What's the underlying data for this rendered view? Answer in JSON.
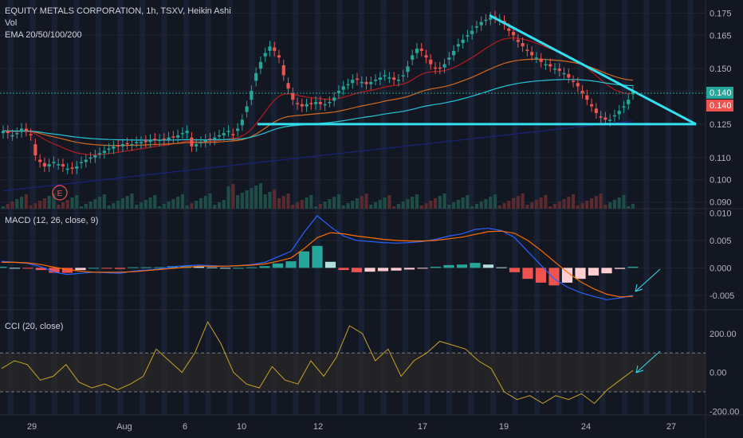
{
  "header": {
    "symbol_line": "EQUITY METALS CORPORATION, 1h, TSXV, Heikin Ashi",
    "vol_label": "Vol",
    "ema_label": "EMA 20/50/100/200",
    "event_marker": "E"
  },
  "colors": {
    "background": "#131722",
    "up": "#26a69a",
    "down": "#ef5350",
    "trendline": "#32e0f0",
    "ema20": "#b71c1c",
    "ema50": "#d2691e",
    "ema100": "#26c6da",
    "ema200": "#1a237e",
    "macd_line": "#2962ff",
    "signal_line": "#ff6d00",
    "cci_line": "#c9a227"
  },
  "chart_data": [
    {
      "type": "candlestick",
      "panel": "price",
      "title": "EQUITY METALS CORPORATION, 1h, TSXV, Heikin Ashi",
      "x_ticks": [
        "29",
        "Aug",
        "6",
        "10",
        "12",
        "17",
        "19",
        "24",
        "27"
      ],
      "y_ticks": [
        0.175,
        0.165,
        0.15,
        0.14,
        0.125,
        0.11,
        0.1,
        0.09
      ],
      "y_tick_labels": [
        "0.175",
        "0.165",
        "0.150",
        "0.140",
        "0.125",
        "0.110",
        "0.100",
        "0.090"
      ],
      "ylim": [
        0.087,
        0.178
      ],
      "price_labels": [
        "0.140",
        "0.140"
      ],
      "candles_close": [
        0.122,
        0.121,
        0.12,
        0.121,
        0.123,
        0.122,
        0.12,
        0.111,
        0.108,
        0.106,
        0.107,
        0.108,
        0.107,
        0.106,
        0.105,
        0.105,
        0.106,
        0.108,
        0.109,
        0.11,
        0.111,
        0.112,
        0.113,
        0.114,
        0.115,
        0.115,
        0.116,
        0.116,
        0.116,
        0.117,
        0.117,
        0.117,
        0.118,
        0.118,
        0.118,
        0.118,
        0.119,
        0.119,
        0.12,
        0.121,
        0.122,
        0.115,
        0.116,
        0.117,
        0.118,
        0.118,
        0.119,
        0.12,
        0.121,
        0.122,
        0.12,
        0.123,
        0.127,
        0.133,
        0.14,
        0.148,
        0.153,
        0.157,
        0.16,
        0.158,
        0.155,
        0.147,
        0.141,
        0.136,
        0.134,
        0.133,
        0.134,
        0.134,
        0.135,
        0.134,
        0.134,
        0.135,
        0.137,
        0.14,
        0.142,
        0.143,
        0.145,
        0.145,
        0.144,
        0.143,
        0.144,
        0.145,
        0.146,
        0.147,
        0.146,
        0.145,
        0.145,
        0.147,
        0.151,
        0.156,
        0.159,
        0.158,
        0.155,
        0.152,
        0.15,
        0.15,
        0.152,
        0.155,
        0.158,
        0.161,
        0.163,
        0.165,
        0.167,
        0.169,
        0.171,
        0.172,
        0.173,
        0.173,
        0.172,
        0.17,
        0.167,
        0.165,
        0.162,
        0.16,
        0.158,
        0.156,
        0.155,
        0.153,
        0.152,
        0.151,
        0.15,
        0.149,
        0.148,
        0.146,
        0.144,
        0.142,
        0.139,
        0.136,
        0.133,
        0.13,
        0.128,
        0.127,
        0.127,
        0.129,
        0.131,
        0.133,
        0.136,
        0.14
      ],
      "ema_labels": [
        "EMA 20",
        "EMA 50",
        "EMA 100",
        "EMA 200"
      ],
      "trendlines": [
        {
          "name": "descending resistance",
          "from": [
            0.174,
            0.174
          ],
          "to": [
            0.125,
            0.125
          ]
        },
        {
          "name": "horizontal support",
          "value": 0.125
        }
      ]
    },
    {
      "type": "line",
      "panel": "macd",
      "title": "MACD (12, 26, close, 9)",
      "y_ticks": [
        0.01,
        0.005,
        0.0,
        -0.005
      ],
      "y_tick_labels": [
        "0.010",
        "0.005",
        "0.000",
        "-0.005"
      ],
      "ylim": [
        -0.0075,
        0.0105
      ],
      "series": [
        {
          "values": [
            0.0012,
            0.001,
            0.0008,
            0.0002,
            -0.0008,
            -0.0012,
            -0.001,
            -0.0008,
            -0.0009,
            -0.001,
            -0.0006,
            -0.0004,
            -0.0002,
            0.0002,
            0.0004,
            0.0005,
            0.0004,
            0.0003,
            0.0004,
            0.0006,
            0.001,
            0.002,
            0.003,
            0.0065,
            0.0095,
            0.0075,
            0.0058,
            0.005,
            0.0048,
            0.0046,
            0.0045,
            0.0046,
            0.0048,
            0.0052,
            0.0058,
            0.0062,
            0.007,
            0.0072,
            0.0068,
            0.0055,
            0.003,
            0.0005,
            -0.002,
            -0.0035,
            -0.0045,
            -0.0052,
            -0.0058,
            -0.0055,
            -0.005
          ]
        },
        {
          "values": [
            0.001,
            0.001,
            0.0009,
            0.0006,
            0.0001,
            -0.0003,
            -0.0006,
            -0.0008,
            -0.0008,
            -0.0008,
            -0.0007,
            -0.0005,
            -0.0003,
            -0.0001,
            0.0001,
            0.0003,
            0.0003,
            0.0003,
            0.0004,
            0.0005,
            0.0007,
            0.0012,
            0.0018,
            0.0035,
            0.0055,
            0.0064,
            0.0062,
            0.0058,
            0.0055,
            0.0052,
            0.005,
            0.0049,
            0.0049,
            0.005,
            0.0053,
            0.0056,
            0.0061,
            0.0066,
            0.0067,
            0.0063,
            0.005,
            0.0032,
            0.0012,
            -0.0008,
            -0.0025,
            -0.0038,
            -0.0048,
            -0.0053,
            -0.0052
          ]
        }
      ],
      "histogram": [
        0.0002,
        0.0,
        -0.0001,
        -0.0004,
        -0.0009,
        -0.0009,
        -0.0004,
        0.0,
        -0.0001,
        -0.0002,
        0.0001,
        0.0001,
        0.0001,
        0.0003,
        0.0003,
        0.0002,
        0.0001,
        0.0,
        0.0,
        0.0001,
        0.0003,
        0.0008,
        0.0012,
        0.003,
        0.004,
        0.0011,
        -0.0004,
        -0.0008,
        -0.0007,
        -0.0006,
        -0.0005,
        -0.0003,
        -0.0001,
        0.0002,
        0.0005,
        0.0006,
        0.0009,
        0.0006,
        0.0001,
        -0.0008,
        -0.002,
        -0.0027,
        -0.0032,
        -0.0027,
        -0.002,
        -0.0014,
        -0.001,
        -0.0002,
        0.0002
      ]
    },
    {
      "type": "line",
      "panel": "cci",
      "title": "CCI (20, close)",
      "y_ticks": [
        200,
        0,
        -200
      ],
      "y_tick_labels": [
        "200.00",
        "0.00",
        "-200.00"
      ],
      "ylim": [
        -215,
        310
      ],
      "bands": [
        100,
        -100
      ],
      "values": [
        20,
        60,
        40,
        -40,
        -20,
        40,
        -50,
        -80,
        -60,
        -90,
        -60,
        -20,
        120,
        60,
        0,
        100,
        260,
        150,
        0,
        -60,
        -80,
        30,
        -40,
        -60,
        60,
        -20,
        80,
        240,
        200,
        60,
        120,
        -20,
        60,
        100,
        160,
        140,
        120,
        60,
        20,
        -100,
        -140,
        -120,
        -160,
        -120,
        -140,
        -110,
        -160,
        -90,
        -40,
        10
      ]
    }
  ]
}
